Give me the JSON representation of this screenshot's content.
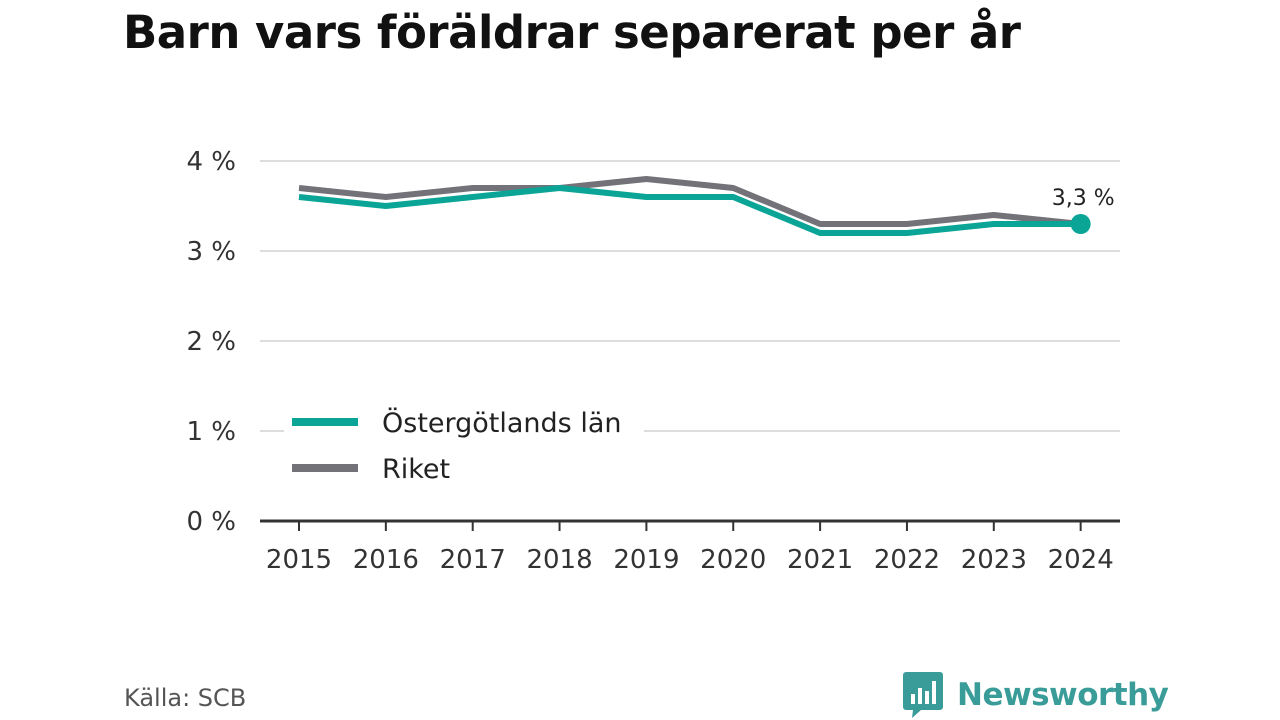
{
  "title": "Barn vars föräldrar separerat per år",
  "source": "Källa: SCB",
  "brand": {
    "name": "Newsworthy",
    "color": "#3a9c98",
    "icon": "bar-chart-bubble-icon"
  },
  "colors": {
    "series_1": "#0aa596",
    "series_2": "#737278",
    "grid": "#dddddd",
    "axis": "#333333"
  },
  "chart_data": {
    "type": "line",
    "x": [
      "2015",
      "2016",
      "2017",
      "2018",
      "2019",
      "2020",
      "2021",
      "2022",
      "2023",
      "2024"
    ],
    "series": [
      {
        "name": "Östergötlands län",
        "values": [
          3.6,
          3.5,
          3.6,
          3.7,
          3.6,
          3.6,
          3.2,
          3.2,
          3.3,
          3.3
        ]
      },
      {
        "name": "Riket",
        "values": [
          3.7,
          3.6,
          3.7,
          3.7,
          3.8,
          3.7,
          3.3,
          3.3,
          3.4,
          3.3
        ]
      }
    ],
    "yticks": [
      {
        "value": 0,
        "label": "0 %"
      },
      {
        "value": 1,
        "label": "1 %"
      },
      {
        "value": 2,
        "label": "2 %"
      },
      {
        "value": 3,
        "label": "3 %"
      },
      {
        "value": 4,
        "label": "4 %"
      }
    ],
    "ylim": [
      0,
      4
    ],
    "grid": true,
    "legend_position": "bottom-left",
    "end_label": {
      "series": "Östergötlands län",
      "text": "3,3 %"
    }
  }
}
